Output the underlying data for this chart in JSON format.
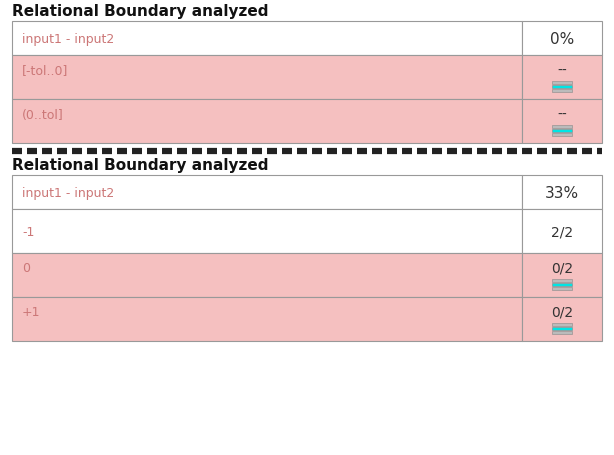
{
  "title": "Relational Boundary analyzed",
  "bg_color": "#ffffff",
  "pink_color": "#f5c0c0",
  "white_color": "#ffffff",
  "text_color_dark": "#333333",
  "text_color_pink": "#cc7777",
  "border_color": "#999999",
  "title_color": "#111111",
  "table1": {
    "header": {
      "label": "input1 - input2",
      "value": "0%",
      "bg": "#ffffff"
    },
    "rows": [
      {
        "label": "[-tol..0]",
        "value": "--",
        "has_icon": true,
        "bg": "#f5c0c0"
      },
      {
        "label": "(0..tol]",
        "value": "--",
        "has_icon": true,
        "bg": "#f5c0c0"
      }
    ]
  },
  "table2": {
    "header": {
      "label": "input1 - input2",
      "value": "33%",
      "bg": "#ffffff"
    },
    "rows": [
      {
        "label": "-1",
        "value": "2/2",
        "has_icon": false,
        "bg": "#ffffff"
      },
      {
        "label": "0",
        "value": "0/2",
        "has_icon": true,
        "bg": "#f5c0c0"
      },
      {
        "label": "+1",
        "value": "0/2",
        "has_icon": true,
        "bg": "#f5c0c0"
      }
    ]
  },
  "dash_color": "#222222",
  "font_size_title": 11,
  "font_size_cell": 9,
  "font_size_value": 10
}
